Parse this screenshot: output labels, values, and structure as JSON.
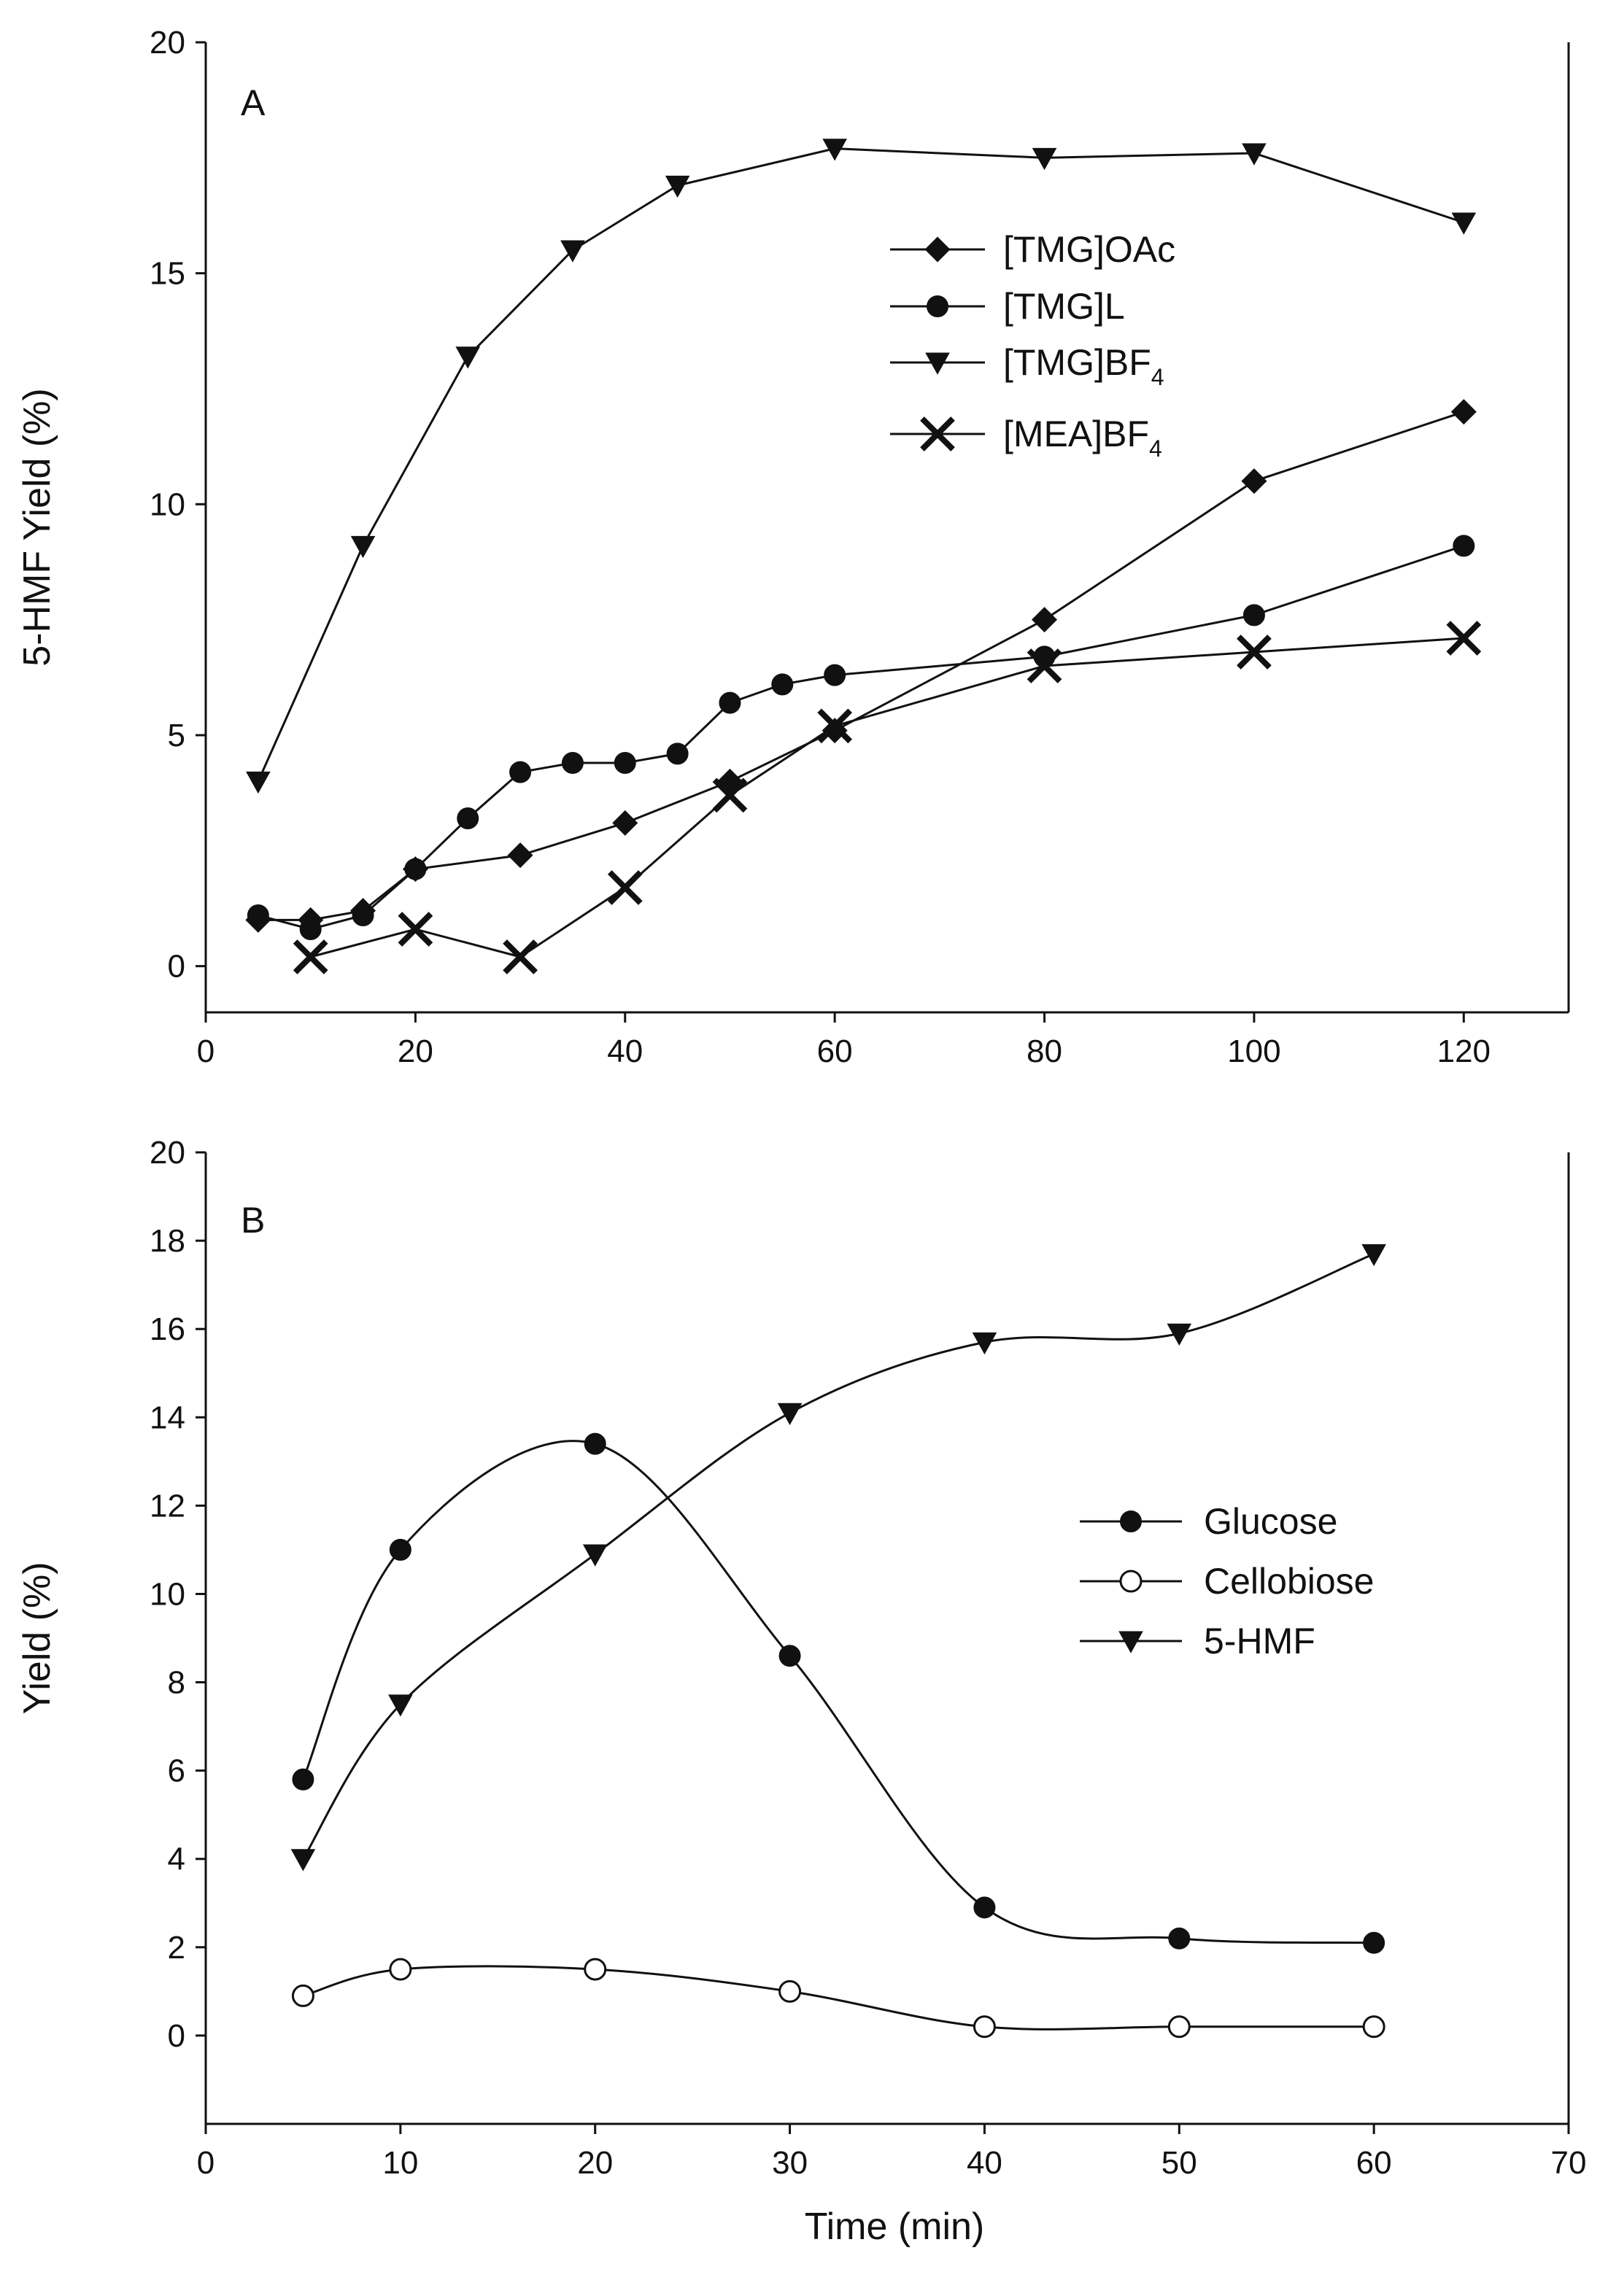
{
  "chart_data": [
    {
      "type": "line",
      "panel_label": "A",
      "title": "",
      "xlabel": "",
      "ylabel": "5-HMF Yield (%)",
      "xlim": [
        0,
        130
      ],
      "ylim": [
        -1,
        20
      ],
      "xticks": [
        0,
        20,
        40,
        60,
        80,
        100,
        120
      ],
      "yticks": [
        0,
        5,
        10,
        15,
        20
      ],
      "legend_position": "upper-center-right",
      "series": [
        {
          "name": "[TMG]OAc",
          "legend_parts": [
            "[TMG]OAc",
            ""
          ],
          "marker": "diamond",
          "x": [
            5,
            10,
            15,
            20,
            30,
            40,
            50,
            60,
            80,
            100,
            120
          ],
          "y": [
            1.0,
            1.0,
            1.2,
            2.1,
            2.4,
            3.1,
            4.0,
            5.1,
            7.5,
            10.5,
            12.0
          ]
        },
        {
          "name": "[TMG]L",
          "legend_parts": [
            "[TMG]L",
            ""
          ],
          "marker": "circle",
          "x": [
            5,
            10,
            15,
            20,
            25,
            30,
            35,
            40,
            45,
            50,
            55,
            60,
            80,
            100,
            120
          ],
          "y": [
            1.1,
            0.8,
            1.1,
            2.1,
            3.2,
            4.2,
            4.4,
            4.4,
            4.6,
            5.7,
            6.1,
            6.3,
            6.7,
            7.6,
            9.1
          ]
        },
        {
          "name": "[TMG]BF4",
          "legend_parts": [
            "[TMG]BF",
            "4"
          ],
          "marker": "triangle-down",
          "x": [
            5,
            15,
            25,
            35,
            45,
            60,
            80,
            100,
            120
          ],
          "y": [
            4.0,
            9.1,
            13.2,
            15.5,
            16.9,
            17.7,
            17.5,
            17.6,
            16.1
          ]
        },
        {
          "name": "[MEA]BF4",
          "legend_parts": [
            "[MEA]BF",
            "4"
          ],
          "marker": "x",
          "x": [
            10,
            20,
            30,
            40,
            50,
            60,
            80,
            100,
            120
          ],
          "y": [
            0.2,
            0.8,
            0.2,
            1.7,
            3.7,
            5.2,
            6.5,
            6.8,
            7.1
          ]
        }
      ]
    },
    {
      "type": "line",
      "panel_label": "B",
      "title": "",
      "xlabel": "Time (min)",
      "ylabel": "Yield (%)",
      "xlim": [
        0,
        70
      ],
      "ylim": [
        -2,
        20
      ],
      "xticks": [
        0,
        10,
        20,
        30,
        40,
        50,
        60,
        70
      ],
      "yticks": [
        0,
        2,
        4,
        6,
        8,
        10,
        12,
        14,
        16,
        18,
        20
      ],
      "legend_position": "center-right",
      "series": [
        {
          "name": "Glucose",
          "legend_parts": [
            "Glucose",
            ""
          ],
          "marker": "circle",
          "x": [
            5,
            10,
            20,
            30,
            40,
            50,
            60
          ],
          "y": [
            5.8,
            11.0,
            13.4,
            8.6,
            2.9,
            2.2,
            2.1
          ]
        },
        {
          "name": "Cellobiose",
          "legend_parts": [
            "Cellobiose",
            ""
          ],
          "marker": "circle-open",
          "x": [
            5,
            10,
            20,
            30,
            40,
            50,
            60
          ],
          "y": [
            0.9,
            1.5,
            1.5,
            1.0,
            0.2,
            0.2,
            0.2
          ]
        },
        {
          "name": "5-HMF",
          "legend_parts": [
            "5-HMF",
            ""
          ],
          "marker": "triangle-down",
          "x": [
            5,
            10,
            20,
            30,
            40,
            50,
            60
          ],
          "y": [
            4.0,
            7.5,
            10.9,
            14.1,
            15.7,
            15.9,
            17.7
          ]
        }
      ]
    }
  ]
}
